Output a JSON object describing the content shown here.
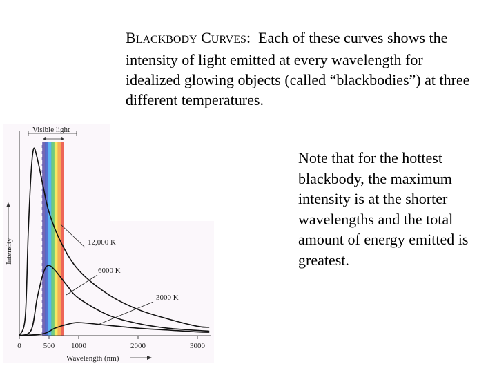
{
  "intro": {
    "heading_first": "B",
    "heading_rest": "LACKBODY",
    "heading2_first": "C",
    "heading2_rest": "URVES",
    "colon": ":",
    "body": "Each of these curves shows the intensity of light emitted at every wavelength for idealized glowing objects (called “blackbodies”) at three different temperatures."
  },
  "note": "Note that for the hottest blackbody, the maximum intensity is at the shorter wavelengths and the total amount of energy emitted is greatest.",
  "figure": {
    "visible_band_label": "Visible light",
    "band_colors": [
      "#5b4fa6",
      "#3a57c8",
      "#3fa9f0",
      "#58c26a",
      "#f2e64a",
      "#f6a13c",
      "#ea4b3a"
    ]
  },
  "chart_data": {
    "type": "line",
    "xlabel": "Wavelength (nm)",
    "ylabel": "Intensity",
    "x_ticks": [
      0,
      500,
      1000,
      2000,
      3000
    ],
    "xlim": [
      0,
      3200
    ],
    "ylim": [
      0,
      1
    ],
    "series": [
      {
        "name": "12,000 K",
        "x": [
          0,
          100,
          150,
          200,
          242,
          300,
          400,
          500,
          700,
          1000,
          1500,
          2000,
          2500,
          3000,
          3200
        ],
        "y": [
          0,
          0.1,
          0.55,
          0.88,
          1.0,
          0.95,
          0.8,
          0.66,
          0.5,
          0.35,
          0.22,
          0.14,
          0.09,
          0.05,
          0.045
        ]
      },
      {
        "name": "6000 K",
        "x": [
          0,
          200,
          300,
          400,
          483,
          600,
          800,
          1000,
          1500,
          2000,
          2500,
          3000,
          3200
        ],
        "y": [
          0,
          0.03,
          0.2,
          0.33,
          0.375,
          0.35,
          0.27,
          0.2,
          0.11,
          0.065,
          0.04,
          0.028,
          0.024
        ]
      },
      {
        "name": "3000 K",
        "x": [
          0,
          400,
          600,
          800,
          966,
          1200,
          1500,
          2000,
          2500,
          3000,
          3200
        ],
        "y": [
          0,
          0.01,
          0.04,
          0.06,
          0.07,
          0.065,
          0.055,
          0.04,
          0.03,
          0.02,
          0.018
        ]
      }
    ]
  }
}
